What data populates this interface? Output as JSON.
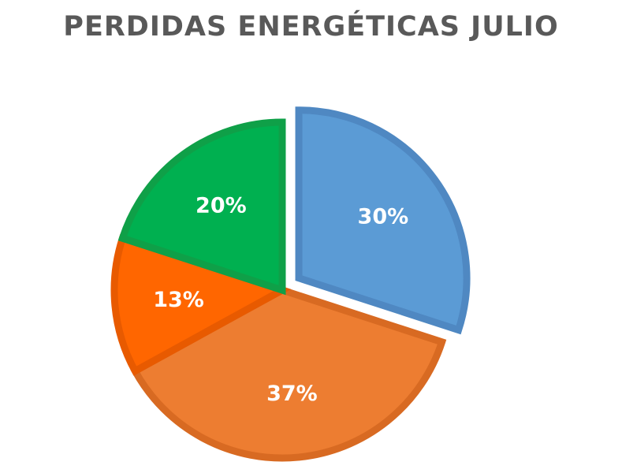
{
  "chart_data": {
    "type": "pie",
    "title": "PERDIDAS ENERGÉTICAS JULIO",
    "start_angle_deg": 0,
    "direction": "clockwise",
    "slices": [
      {
        "value": 30,
        "label": "30%",
        "color": "#5B9BD5",
        "border": "#4F88C2",
        "exploded": true
      },
      {
        "value": 37,
        "label": "37%",
        "color": "#ED7D31",
        "border": "#D86A22",
        "exploded": false
      },
      {
        "value": 13,
        "label": "13%",
        "color": "#FF6600",
        "border": "#E85A00",
        "exploded": false
      },
      {
        "value": 20,
        "label": "20%",
        "color": "#00B050",
        "border": "#0FA048",
        "exploded": false
      }
    ]
  }
}
